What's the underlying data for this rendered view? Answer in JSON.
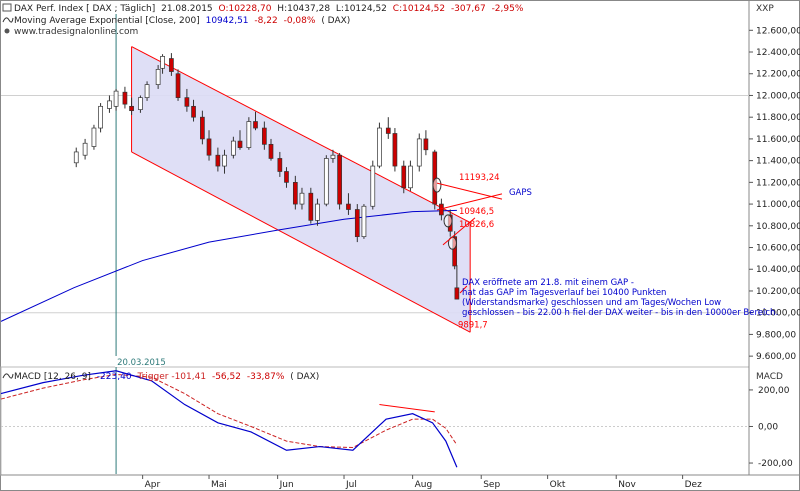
{
  "header": {
    "line1_name": "DAX Perf. Index [ DAX ; Täglich]",
    "line1_date": "21.08.2015",
    "line1_open": "O:10228,70",
    "line1_high": "H:10437,28",
    "line1_low": "L:10124,52",
    "line1_close": "C:10124,52",
    "line1_change": "-307,67",
    "line1_change_pct": "-2,95%",
    "line2_name": "Moving Average Exponential [Close, 200]",
    "line2_value": "10942,51",
    "line2_change": "-8,22",
    "line2_change_pct": "-0,08%",
    "line2_symbol": "( DAX)",
    "line3_source": "www.tradesignalonline.com",
    "exchange_label": "XXP"
  },
  "price_axis": {
    "ticks": [
      "12.600,00",
      "12.400,00",
      "12.200,00",
      "12.000,00",
      "11.800,00",
      "11.600,00",
      "11.400,00",
      "11.200,00",
      "11.000,00",
      "10.800,00",
      "10.600,00",
      "10.400,00",
      "10.200,00",
      "10.000,00",
      "9.800,00",
      "9.600,00"
    ]
  },
  "macd_axis": {
    "label": "MACD",
    "ticks": [
      "200,00",
      "0,00",
      "-200,00"
    ]
  },
  "time_axis": {
    "months": [
      "Apr",
      "Mai",
      "Jun",
      "Jul",
      "Aug",
      "Sep",
      "Okt",
      "Nov",
      "Dez"
    ]
  },
  "vertical_marker_label": "20.03.2015",
  "annotations": {
    "level_1": "11193,24",
    "level_2": "10946,5",
    "level_3": "10826,6",
    "gaps_label": "GAPS",
    "low_label": "9891,7",
    "comment_line1": "DAX eröffnete am 21.8. mit einem GAP -",
    "comment_line2": "hat das GAP im Tagesverlauf  bei 10400 Punkten",
    "comment_line3": "(Widerstandsmarke) geschlossen und  am Tages/Wochen Low",
    "comment_line4": "geschlossen - bis 22.00 h fiel der DAX weiter - bis in den 10000er Bereich."
  },
  "macd_header": {
    "label": "MACD [12, 26, 9]",
    "macd_value": "-223,40",
    "trigger": "Trigger -101,41",
    "diff": "-56,52",
    "diff_pct": "-33,87%",
    "symbol": "( DAX)"
  },
  "colors": {
    "candle_up": "#ffffff",
    "candle_down": "#cc0000",
    "ema_line": "#0000cc",
    "channel": "#ff0000",
    "channel_fill": "#dcdcf5",
    "macd_line": "#0000cc",
    "trigger_line": "#cc2222",
    "annotation_text": "#0000cc",
    "marker_line": "#2e7a7a"
  },
  "chart_data": {
    "type": "candlestick",
    "title": "DAX Perf. Index [ DAX ; Täglich]",
    "ylim": [
      9500,
      12750
    ],
    "macd_ylim": [
      -260,
      320
    ],
    "note": "OHLC values are approximate readings, weekly-sampled from a daily chart",
    "candles": [
      {
        "x": "2015-03-02",
        "o": 11380,
        "h": 11520,
        "l": 11340,
        "c": 11480
      },
      {
        "x": "2015-03-06",
        "o": 11450,
        "h": 11600,
        "l": 11410,
        "c": 11560
      },
      {
        "x": "2015-03-10",
        "o": 11530,
        "h": 11730,
        "l": 11500,
        "c": 11700
      },
      {
        "x": "2015-03-13",
        "o": 11700,
        "h": 11930,
        "l": 11660,
        "c": 11900
      },
      {
        "x": "2015-03-17",
        "o": 11880,
        "h": 12000,
        "l": 11840,
        "c": 11950
      },
      {
        "x": "2015-03-20",
        "o": 11900,
        "h": 12060,
        "l": 11860,
        "c": 12040
      },
      {
        "x": "2015-03-24",
        "o": 12030,
        "h": 12080,
        "l": 11880,
        "c": 11920
      },
      {
        "x": "2015-03-27",
        "o": 11900,
        "h": 11980,
        "l": 11820,
        "c": 11860
      },
      {
        "x": "2015-03-31",
        "o": 11870,
        "h": 12000,
        "l": 11840,
        "c": 11980
      },
      {
        "x": "2015-04-03",
        "o": 11980,
        "h": 12130,
        "l": 11950,
        "c": 12100
      },
      {
        "x": "2015-04-08",
        "o": 12100,
        "h": 12280,
        "l": 12060,
        "c": 12240
      },
      {
        "x": "2015-04-10",
        "o": 12250,
        "h": 12380,
        "l": 12200,
        "c": 12360
      },
      {
        "x": "2015-04-14",
        "o": 12340,
        "h": 12390,
        "l": 12180,
        "c": 12220
      },
      {
        "x": "2015-04-17",
        "o": 12200,
        "h": 12240,
        "l": 11950,
        "c": 11980
      },
      {
        "x": "2015-04-21",
        "o": 11980,
        "h": 12060,
        "l": 11850,
        "c": 11900
      },
      {
        "x": "2015-04-24",
        "o": 11900,
        "h": 11960,
        "l": 11760,
        "c": 11800
      },
      {
        "x": "2015-04-28",
        "o": 11800,
        "h": 11860,
        "l": 11550,
        "c": 11600
      },
      {
        "x": "2015-05-01",
        "o": 11600,
        "h": 11680,
        "l": 11400,
        "c": 11450
      },
      {
        "x": "2015-05-05",
        "o": 11450,
        "h": 11520,
        "l": 11300,
        "c": 11350
      },
      {
        "x": "2015-05-08",
        "o": 11350,
        "h": 11500,
        "l": 11280,
        "c": 11450
      },
      {
        "x": "2015-05-12",
        "o": 11450,
        "h": 11620,
        "l": 11420,
        "c": 11580
      },
      {
        "x": "2015-05-15",
        "o": 11580,
        "h": 11680,
        "l": 11500,
        "c": 11520
      },
      {
        "x": "2015-05-19",
        "o": 11520,
        "h": 11800,
        "l": 11500,
        "c": 11760
      },
      {
        "x": "2015-05-22",
        "o": 11760,
        "h": 11850,
        "l": 11680,
        "c": 11700
      },
      {
        "x": "2015-05-26",
        "o": 11700,
        "h": 11760,
        "l": 11500,
        "c": 11550
      },
      {
        "x": "2015-05-29",
        "o": 11550,
        "h": 11600,
        "l": 11400,
        "c": 11420
      },
      {
        "x": "2015-06-02",
        "o": 11420,
        "h": 11480,
        "l": 11250,
        "c": 11300
      },
      {
        "x": "2015-06-05",
        "o": 11300,
        "h": 11340,
        "l": 11150,
        "c": 11200
      },
      {
        "x": "2015-06-09",
        "o": 11200,
        "h": 11260,
        "l": 10950,
        "c": 11000
      },
      {
        "x": "2015-06-12",
        "o": 11000,
        "h": 11150,
        "l": 10950,
        "c": 11100
      },
      {
        "x": "2015-06-16",
        "o": 11100,
        "h": 11150,
        "l": 10820,
        "c": 10850
      },
      {
        "x": "2015-06-19",
        "o": 10850,
        "h": 11050,
        "l": 10800,
        "c": 11000
      },
      {
        "x": "2015-06-23",
        "o": 11000,
        "h": 11450,
        "l": 10980,
        "c": 11420
      },
      {
        "x": "2015-06-26",
        "o": 11420,
        "h": 11500,
        "l": 11380,
        "c": 11450
      },
      {
        "x": "2015-06-29",
        "o": 11450,
        "h": 11470,
        "l": 10950,
        "c": 11000
      },
      {
        "x": "2015-07-03",
        "o": 11000,
        "h": 11100,
        "l": 10900,
        "c": 10950
      },
      {
        "x": "2015-07-07",
        "o": 10950,
        "h": 11000,
        "l": 10650,
        "c": 10700
      },
      {
        "x": "2015-07-10",
        "o": 10700,
        "h": 11000,
        "l": 10680,
        "c": 10980
      },
      {
        "x": "2015-07-14",
        "o": 10980,
        "h": 11400,
        "l": 10950,
        "c": 11350
      },
      {
        "x": "2015-07-17",
        "o": 11350,
        "h": 11750,
        "l": 11330,
        "c": 11700
      },
      {
        "x": "2015-07-21",
        "o": 11700,
        "h": 11800,
        "l": 11600,
        "c": 11650
      },
      {
        "x": "2015-07-24",
        "o": 11650,
        "h": 11700,
        "l": 11300,
        "c": 11350
      },
      {
        "x": "2015-07-28",
        "o": 11350,
        "h": 11400,
        "l": 11100,
        "c": 11150
      },
      {
        "x": "2015-07-31",
        "o": 11150,
        "h": 11400,
        "l": 11120,
        "c": 11350
      },
      {
        "x": "2015-08-04",
        "o": 11350,
        "h": 11650,
        "l": 11300,
        "c": 11600
      },
      {
        "x": "2015-08-07",
        "o": 11600,
        "h": 11680,
        "l": 11450,
        "c": 11500
      },
      {
        "x": "2015-08-11",
        "o": 11480,
        "h": 11500,
        "l": 10950,
        "c": 11000
      },
      {
        "x": "2015-08-14",
        "o": 11000,
        "h": 11050,
        "l": 10850,
        "c": 10900
      },
      {
        "x": "2015-08-18",
        "o": 10900,
        "h": 10950,
        "l": 10700,
        "c": 10750
      },
      {
        "x": "2015-08-20",
        "o": 10700,
        "h": 10750,
        "l": 10400,
        "c": 10430
      },
      {
        "x": "2015-08-21",
        "o": 10229,
        "h": 10437,
        "l": 10124,
        "c": 10125
      }
    ],
    "ema200": [
      {
        "x": "2015-01-27",
        "y": 9920
      },
      {
        "x": "2015-03-01",
        "y": 10230
      },
      {
        "x": "2015-04-01",
        "y": 10480
      },
      {
        "x": "2015-05-01",
        "y": 10650
      },
      {
        "x": "2015-06-01",
        "y": 10760
      },
      {
        "x": "2015-07-01",
        "y": 10860
      },
      {
        "x": "2015-08-01",
        "y": 10930
      },
      {
        "x": "2015-08-21",
        "y": 10942
      }
    ],
    "channel": {
      "upper": [
        {
          "x": "2015-03-27",
          "y": 12450
        },
        {
          "x": "2015-08-27",
          "y": 10830
        }
      ],
      "lower": [
        {
          "x": "2015-03-27",
          "y": 11480
        },
        {
          "x": "2015-08-27",
          "y": 9820
        }
      ]
    },
    "gap_levels": [
      11193.24,
      10946.5,
      10826.6
    ],
    "low_level": 9891.7,
    "vertical_marker": "2015-03-20",
    "macd": {
      "macd": [
        {
          "x": "2015-01-27",
          "y": 180
        },
        {
          "x": "2015-02-15",
          "y": 240
        },
        {
          "x": "2015-03-05",
          "y": 280
        },
        {
          "x": "2015-03-20",
          "y": 305
        },
        {
          "x": "2015-04-05",
          "y": 250
        },
        {
          "x": "2015-04-20",
          "y": 120
        },
        {
          "x": "2015-05-05",
          "y": 20
        },
        {
          "x": "2015-05-20",
          "y": -30
        },
        {
          "x": "2015-06-05",
          "y": -130
        },
        {
          "x": "2015-06-20",
          "y": -110
        },
        {
          "x": "2015-07-05",
          "y": -130
        },
        {
          "x": "2015-07-20",
          "y": 40
        },
        {
          "x": "2015-08-01",
          "y": 70
        },
        {
          "x": "2015-08-10",
          "y": 20
        },
        {
          "x": "2015-08-16",
          "y": -80
        },
        {
          "x": "2015-08-21",
          "y": -223
        }
      ],
      "trigger": [
        {
          "x": "2015-01-27",
          "y": 150
        },
        {
          "x": "2015-02-15",
          "y": 210
        },
        {
          "x": "2015-03-05",
          "y": 255
        },
        {
          "x": "2015-03-20",
          "y": 285
        },
        {
          "x": "2015-04-05",
          "y": 270
        },
        {
          "x": "2015-04-20",
          "y": 180
        },
        {
          "x": "2015-05-05",
          "y": 70
        },
        {
          "x": "2015-05-20",
          "y": 0
        },
        {
          "x": "2015-06-05",
          "y": -80
        },
        {
          "x": "2015-06-20",
          "y": -110
        },
        {
          "x": "2015-07-05",
          "y": -115
        },
        {
          "x": "2015-07-20",
          "y": -20
        },
        {
          "x": "2015-08-01",
          "y": 40
        },
        {
          "x": "2015-08-10",
          "y": 40
        },
        {
          "x": "2015-08-16",
          "y": -10
        },
        {
          "x": "2015-08-21",
          "y": -101
        }
      ],
      "divergence_line": [
        {
          "x": "2015-07-17",
          "y": 120
        },
        {
          "x": "2015-08-11",
          "y": 80
        }
      ]
    }
  }
}
